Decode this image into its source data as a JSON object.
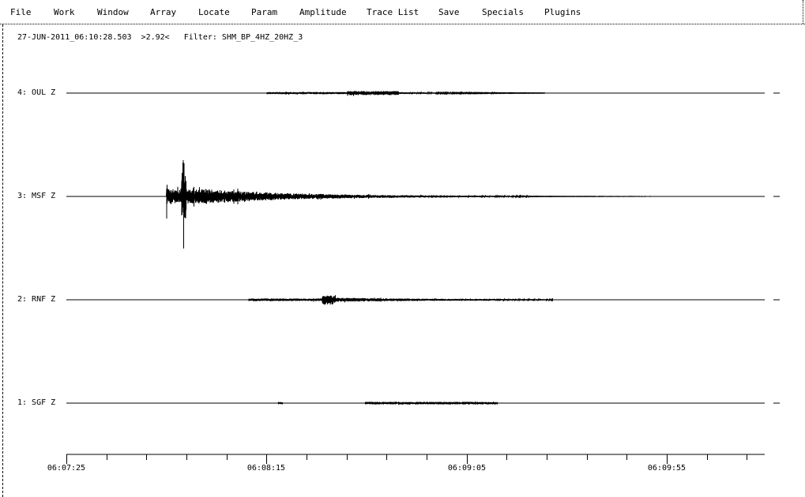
{
  "menu": [
    "File",
    "Work",
    "Window",
    "Array",
    "Locate",
    "Param",
    "Amplitude",
    "Trace List",
    "Save",
    "Specials",
    "Plugins"
  ],
  "info": {
    "timestamp": "27-JUN-2011_06:10:28.503",
    "scale": ">2.92<",
    "filter": "Filter: SHM_BP_4HZ_20HZ_3"
  },
  "traces": [
    {
      "label": "4: OUL Z"
    },
    {
      "label": "3: MSF Z"
    },
    {
      "label": "2: RNF Z"
    },
    {
      "label": "1: SGF Z"
    }
  ],
  "time_axis": {
    "labels": [
      "06:07:25",
      "06:08:15",
      "06:09:05",
      "06:09:55"
    ],
    "minor_tick_seconds": 10
  }
}
